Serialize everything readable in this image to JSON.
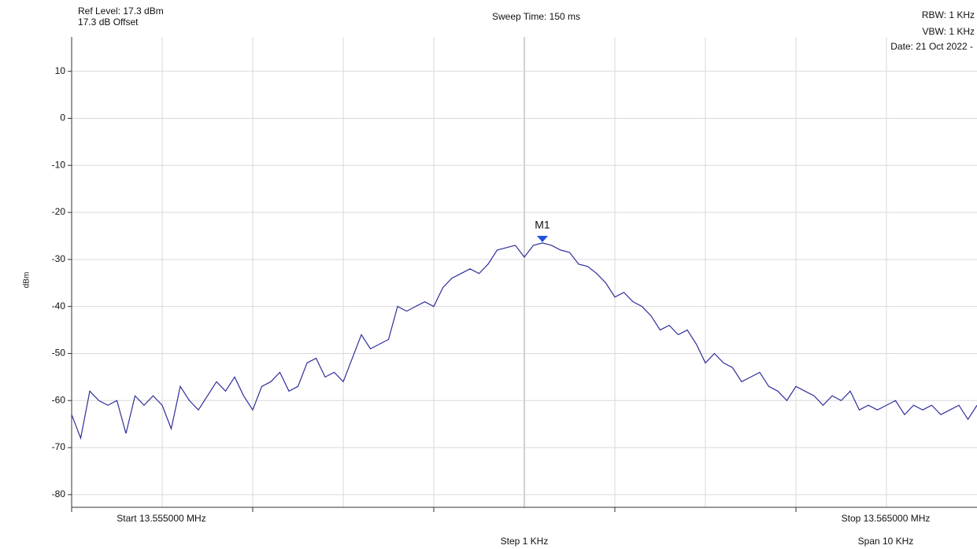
{
  "chart_data": {
    "type": "line",
    "header": {
      "ref_level": "Ref Level: 17.3 dBm",
      "offset": "17.3 dB Offset",
      "sweep_time": "Sweep Time: 150 ms",
      "rbw": "RBW: 1 KHz",
      "vbw": "VBW: 1 KHz",
      "date": "Date: 21 Oct 2022 -"
    },
    "y_label": "dBm",
    "footer": {
      "start": "Start 13.555000 MHz",
      "stop": "Stop 13.565000 MHz",
      "step": "Step 1 KHz",
      "span": "Span 10 KHz"
    },
    "xlim": [
      13.555,
      13.565
    ],
    "xticks": [
      13.556,
      13.557,
      13.558,
      13.559,
      13.56,
      13.561,
      13.562,
      13.563,
      13.564
    ],
    "ylim": [
      -82.7,
      17.3
    ],
    "yticks": [
      10,
      0,
      -10,
      -20,
      -30,
      -40,
      -50,
      -60,
      -70,
      -80
    ],
    "grid": true,
    "x": [
      13.555,
      13.5551,
      13.5552,
      13.5553,
      13.5554,
      13.5555,
      13.5556,
      13.5557,
      13.5558,
      13.5559,
      13.556,
      13.5561,
      13.5562,
      13.5563,
      13.5564,
      13.5565,
      13.5566,
      13.5567,
      13.5568,
      13.5569,
      13.557,
      13.5571,
      13.5572,
      13.5573,
      13.5574,
      13.5575,
      13.5576,
      13.5577,
      13.5578,
      13.5579,
      13.558,
      13.5581,
      13.5582,
      13.5583,
      13.5584,
      13.5585,
      13.5586,
      13.5587,
      13.5588,
      13.5589,
      13.559,
      13.5591,
      13.5592,
      13.5593,
      13.5594,
      13.5595,
      13.5596,
      13.5597,
      13.5598,
      13.5599,
      13.56,
      13.5601,
      13.5602,
      13.5603,
      13.5604,
      13.5605,
      13.5606,
      13.5607,
      13.5608,
      13.5609,
      13.561,
      13.5611,
      13.5612,
      13.5613,
      13.5614,
      13.5615,
      13.5616,
      13.5617,
      13.5618,
      13.5619,
      13.562,
      13.5621,
      13.5622,
      13.5623,
      13.5624,
      13.5625,
      13.5626,
      13.5627,
      13.5628,
      13.5629,
      13.563,
      13.5631,
      13.5632,
      13.5633,
      13.5634,
      13.5635,
      13.5636,
      13.5637,
      13.5638,
      13.5639,
      13.564,
      13.5641,
      13.5642,
      13.5643,
      13.5644,
      13.5645,
      13.5646,
      13.5647,
      13.5648,
      13.5649,
      13.565
    ],
    "series": [
      {
        "color": "#2e2e9c",
        "values": [
          -63,
          -68,
          -58,
          -60,
          -61,
          -60,
          -67,
          -59,
          -61,
          -59,
          -61,
          -66,
          -57,
          -60,
          -62,
          -59,
          -56,
          -58,
          -55,
          -59,
          -62,
          -57,
          -56,
          -54,
          -58,
          -57,
          -52,
          -51,
          -55,
          -54,
          -56,
          -51,
          -46,
          -49,
          -48,
          -47,
          -40,
          -41,
          -40,
          -39,
          -40,
          -36,
          -34,
          -33,
          -32,
          -33,
          -31,
          -28,
          -27.5,
          -27,
          -29.5,
          -27,
          -26.5,
          -27,
          -28,
          -28.5,
          -31,
          -31.5,
          -33,
          -35,
          -38,
          -37,
          -39,
          -40,
          -42,
          -45,
          -44,
          -46,
          -45,
          -48,
          -52,
          -50,
          -52,
          -53,
          -56,
          -55,
          -54,
          -57,
          -58,
          -60,
          -57,
          -58,
          -59,
          -61,
          -59,
          -60,
          -58,
          -62,
          -61,
          -62,
          -61,
          -60,
          -63,
          -61,
          -62,
          -61,
          -63,
          -62,
          -61,
          -64,
          -61
        ]
      }
    ],
    "marker": {
      "label": "M1",
      "x": 13.5602,
      "value": -26.5,
      "color": "#1a4fe0"
    }
  }
}
